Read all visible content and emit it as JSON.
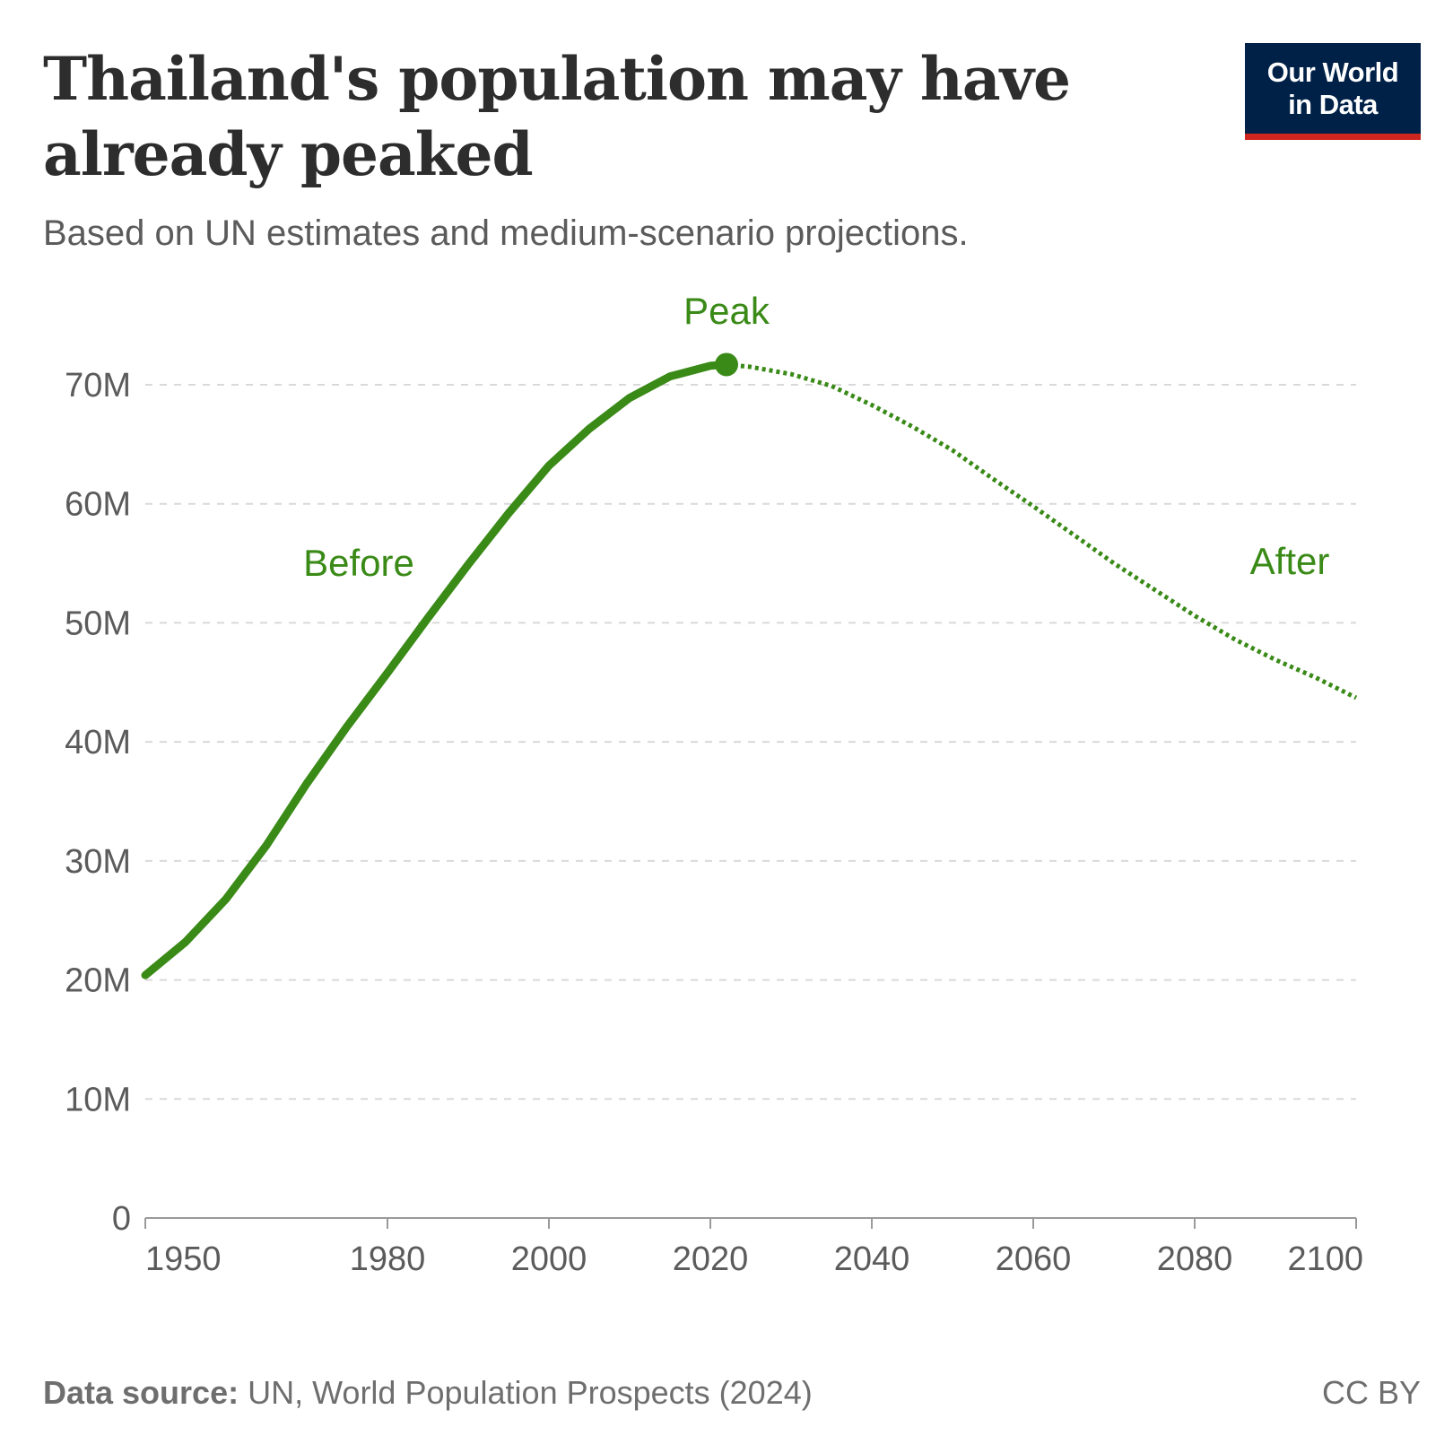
{
  "title": "Thailand's population may have already peaked",
  "subtitle": "Based on UN estimates and medium-scenario projections.",
  "logo": {
    "line1": "Our World",
    "line2": "in Data"
  },
  "footer": {
    "source_label": "Data source:",
    "source_text": "UN, World Population Prospects (2024)",
    "license": "CC BY"
  },
  "colors": {
    "line": "#3a8a17",
    "grid": "#d9d9d9",
    "axis": "#9a9a9a",
    "logo_bg": "#002147",
    "logo_accent": "#ce261e"
  },
  "chart_data": {
    "type": "line",
    "title": "Thailand's population may have already peaked",
    "xlabel": "",
    "ylabel": "",
    "xlim": [
      1950,
      2100
    ],
    "ylim": [
      0,
      70000000
    ],
    "x_ticks": [
      1950,
      1980,
      2000,
      2020,
      2040,
      2060,
      2080,
      2100
    ],
    "x_tick_labels": [
      "1950",
      "1980",
      "2000",
      "2020",
      "2040",
      "2060",
      "2080",
      "2100"
    ],
    "y_ticks": [
      0,
      10000000,
      20000000,
      30000000,
      40000000,
      50000000,
      60000000,
      70000000
    ],
    "y_tick_labels": [
      "0",
      "10M",
      "20M",
      "30M",
      "40M",
      "50M",
      "60M",
      "70M"
    ],
    "grid": true,
    "series": [
      {
        "name": "Before",
        "style": "solid",
        "x": [
          1950,
          1955,
          1960,
          1965,
          1970,
          1975,
          1980,
          1985,
          1990,
          1995,
          2000,
          2005,
          2010,
          2015,
          2020,
          2022
        ],
        "y": [
          20400000,
          23200000,
          26800000,
          31300000,
          36500000,
          41300000,
          45800000,
          50400000,
          54900000,
          59200000,
          63200000,
          66300000,
          68900000,
          70700000,
          71600000,
          71700000
        ]
      },
      {
        "name": "After",
        "style": "dotted",
        "x": [
          2022,
          2025,
          2030,
          2035,
          2040,
          2045,
          2050,
          2055,
          2060,
          2065,
          2070,
          2075,
          2080,
          2085,
          2090,
          2095,
          2100
        ],
        "y": [
          71700000,
          71500000,
          70900000,
          69900000,
          68300000,
          66500000,
          64500000,
          62100000,
          59800000,
          57400000,
          55000000,
          52800000,
          50600000,
          48600000,
          46900000,
          45400000,
          43700000
        ]
      }
    ],
    "annotations": [
      {
        "text": "Peak",
        "x": 2022,
        "y": 71700000
      },
      {
        "text": "Before",
        "x": 1977,
        "y": 55000000
      },
      {
        "text": "After",
        "x": 2093,
        "y": 55000000
      }
    ]
  }
}
